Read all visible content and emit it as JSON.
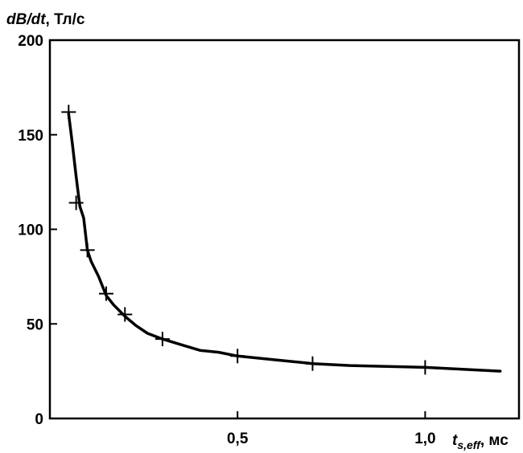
{
  "chart_data": {
    "type": "line",
    "ylabel_var": "dB/dt",
    "ylabel_unit": ", Тл/с",
    "xlabel_var": "t",
    "xlabel_sub": "s,eff",
    "xlabel_unit": ", мс",
    "xlim": [
      0,
      1.25
    ],
    "ylim": [
      0,
      200
    ],
    "x_ticks": [
      0.5,
      1.0
    ],
    "x_tick_labels": [
      "0,5",
      "1,0"
    ],
    "y_ticks": [
      0,
      50,
      100,
      150,
      200
    ],
    "y_tick_labels": [
      "0",
      "50",
      "100",
      "150",
      "200"
    ],
    "grid": false,
    "series": [
      {
        "curve": [
          [
            0.05,
            161
          ],
          [
            0.06,
            145
          ],
          [
            0.07,
            128
          ],
          [
            0.08,
            112
          ],
          [
            0.09,
            106
          ],
          [
            0.1,
            89
          ],
          [
            0.11,
            83
          ],
          [
            0.13,
            75
          ],
          [
            0.15,
            65
          ],
          [
            0.17,
            60
          ],
          [
            0.2,
            54
          ],
          [
            0.23,
            49
          ],
          [
            0.26,
            45
          ],
          [
            0.3,
            42
          ],
          [
            0.35,
            39
          ],
          [
            0.4,
            36
          ],
          [
            0.45,
            35
          ],
          [
            0.5,
            33
          ],
          [
            0.55,
            32
          ],
          [
            0.6,
            31
          ],
          [
            0.7,
            29
          ],
          [
            0.8,
            28
          ],
          [
            0.9,
            27.5
          ],
          [
            1.0,
            27
          ],
          [
            1.1,
            26
          ],
          [
            1.2,
            25
          ]
        ],
        "markers": [
          [
            0.05,
            162
          ],
          [
            0.07,
            114
          ],
          [
            0.1,
            89
          ],
          [
            0.15,
            66
          ],
          [
            0.2,
            55
          ],
          [
            0.3,
            42
          ],
          [
            0.5,
            33
          ],
          [
            0.7,
            29
          ],
          [
            1.0,
            27
          ]
        ]
      }
    ]
  }
}
